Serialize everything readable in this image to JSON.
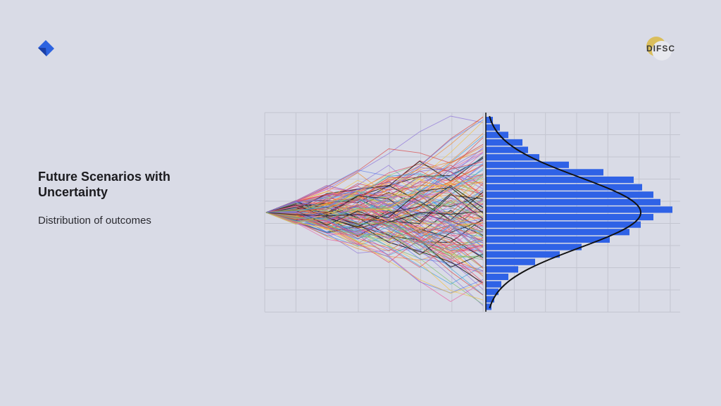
{
  "slide": {
    "title": "Future Scenarios with Uncertainty",
    "subtitle": "Distribution of outcomes",
    "logo_text": "DIFSC",
    "illustration": {
      "histogram": [
        10,
        20,
        32,
        52,
        60,
        76,
        118,
        167,
        210,
        222,
        238,
        248,
        265,
        238,
        220,
        204,
        176,
        136,
        105,
        70,
        46,
        32,
        22,
        18,
        12,
        8
      ]
    }
  }
}
